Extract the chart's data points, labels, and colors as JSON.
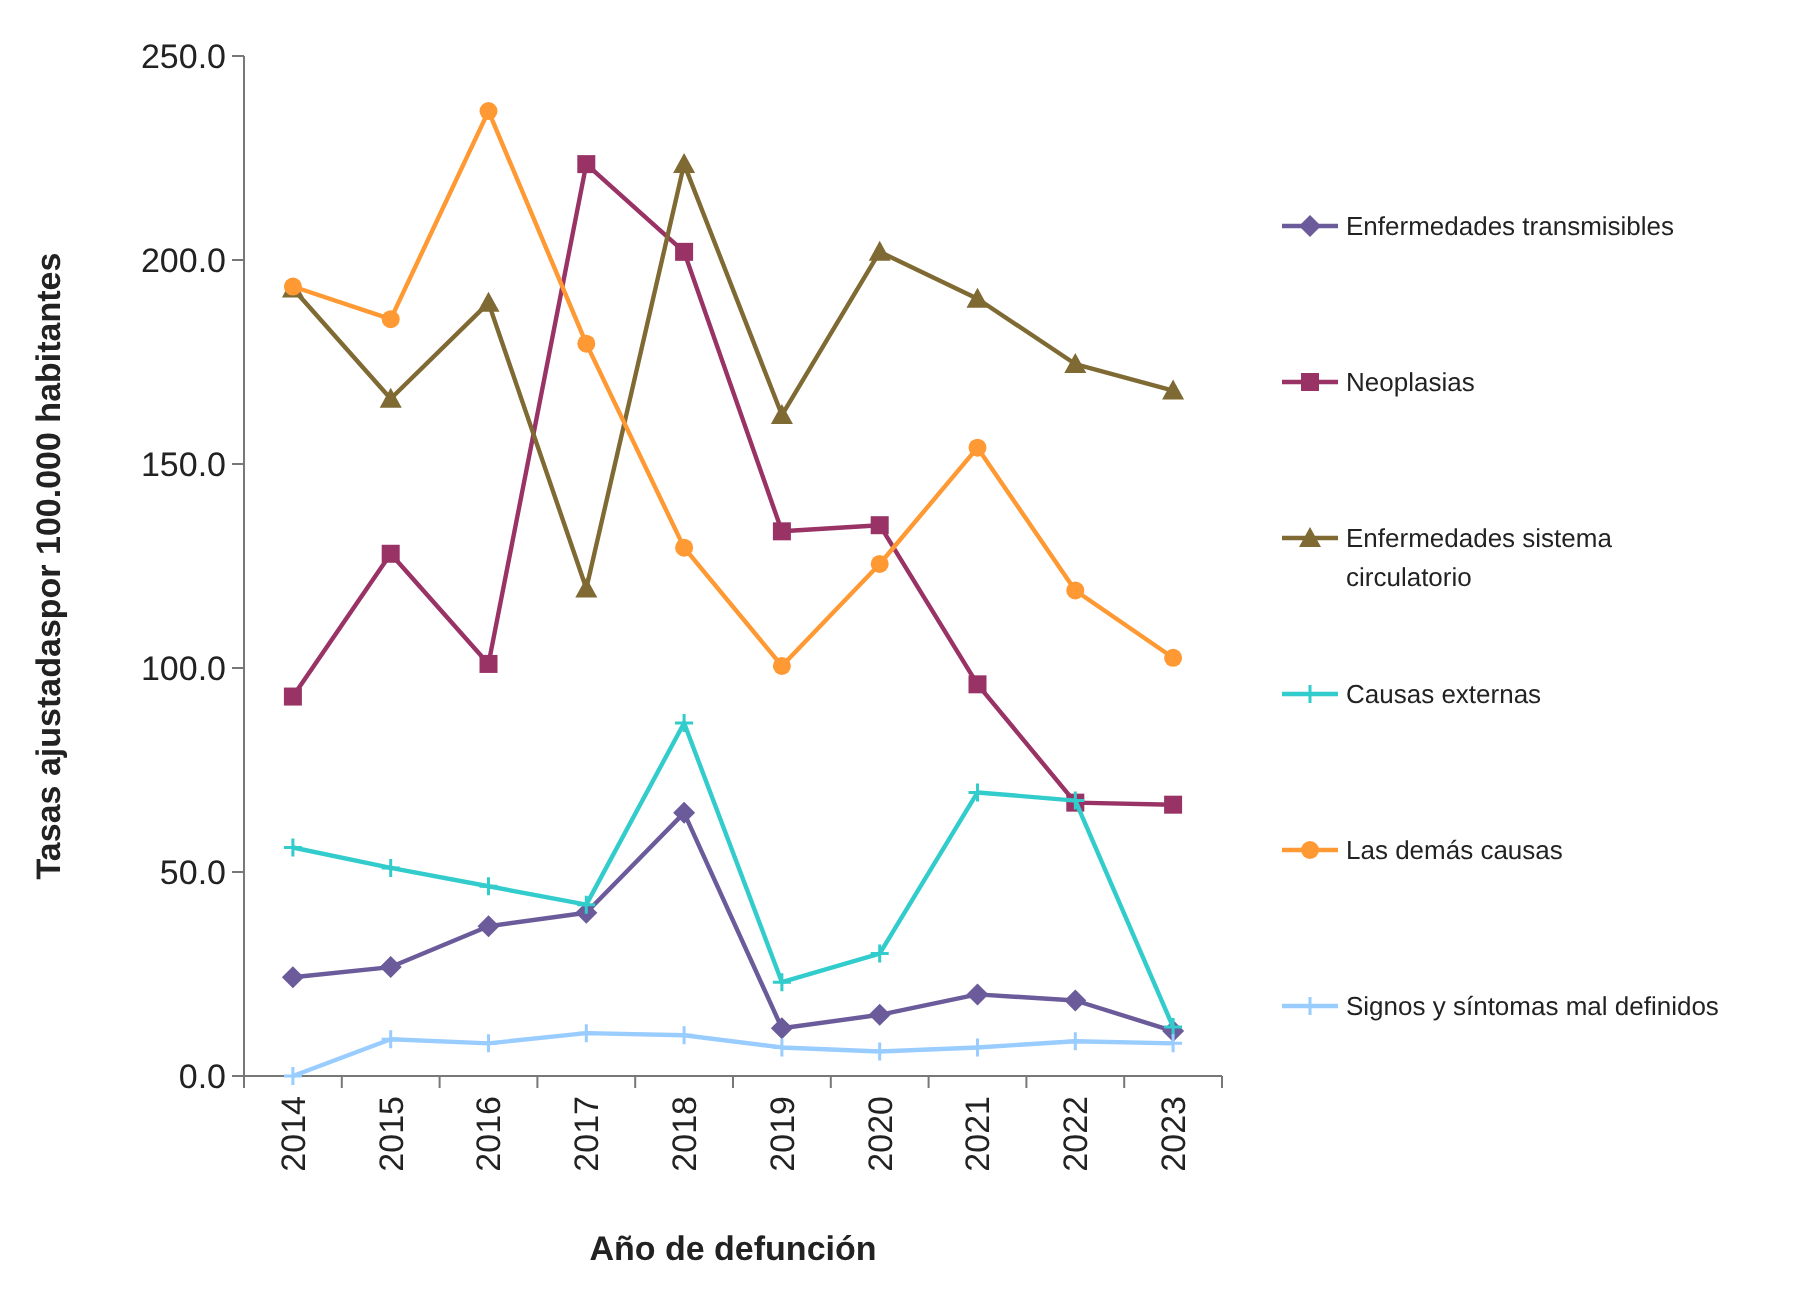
{
  "chart_data": {
    "type": "line",
    "xlabel": "Año de defunción",
    "ylabel": "Tasas ajustadaspor 100.000 habitantes",
    "categories": [
      "2014",
      "2015",
      "2016",
      "2017",
      "2018",
      "2019",
      "2020",
      "2021",
      "2022",
      "2023"
    ],
    "ylim": [
      0,
      250
    ],
    "yticks": [
      {
        "value": 0,
        "label": "0.0"
      },
      {
        "value": 50,
        "label": "50.0"
      },
      {
        "value": 100,
        "label": "100.0"
      },
      {
        "value": 150,
        "label": "150.0"
      },
      {
        "value": 200,
        "label": "200.0"
      },
      {
        "value": 250,
        "label": "250.0"
      }
    ],
    "grid": false,
    "legend": "right",
    "line_style": "solid",
    "series": [
      {
        "name": "Enfermedades transmisibles",
        "color": "#6b5b9a",
        "marker": "diamond",
        "values": [
          24.2,
          26.7,
          36.7,
          40,
          64.5,
          11.7,
          15,
          20,
          18.5,
          11
        ]
      },
      {
        "name": "Neoplasias",
        "color": "#993366",
        "marker": "square",
        "values": [
          93,
          128,
          101,
          223.5,
          202,
          133.5,
          135,
          96,
          67,
          66.5
        ]
      },
      {
        "name": "Enfermedades sistema circulatorio",
        "color": "#7f6a34",
        "marker": "triangle",
        "values": [
          193,
          166,
          189.5,
          119.5,
          223.5,
          162,
          202,
          190.5,
          174.5,
          168
        ]
      },
      {
        "name": "Causas externas",
        "color": "#33cccc",
        "marker": "cross",
        "values": [
          56,
          51,
          46.5,
          42,
          86.5,
          23,
          30,
          69.5,
          67.5,
          12
        ]
      },
      {
        "name": "Las demás causas",
        "color": "#ff9933",
        "marker": "circle",
        "values": [
          193.5,
          185.5,
          236.5,
          179.5,
          129.5,
          100.5,
          125.5,
          154,
          119,
          102.5
        ]
      },
      {
        "name": "Signos y síntomas mal definidos",
        "color": "#99ccff",
        "marker": "cross",
        "values": [
          0,
          9,
          8,
          10.5,
          10,
          7,
          6,
          7,
          8.5,
          8
        ]
      }
    ]
  }
}
